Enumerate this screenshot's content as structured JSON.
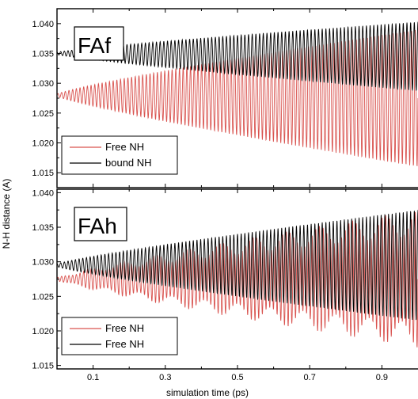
{
  "chart_data": {
    "type": "line",
    "ylabel": "N-H distance (A)",
    "xlabel": "simulation time (ps)",
    "x_ticks": [
      "0.1",
      "0.3",
      "0.5",
      "0.7",
      "0.9"
    ],
    "xlim": [
      0.0,
      1.0
    ],
    "grid": false,
    "panels": [
      {
        "label": "FAf",
        "ylim": [
          1.0125,
          1.0425
        ],
        "y_ticks": [
          "1.015",
          "1.020",
          "1.025",
          "1.030",
          "1.035",
          "1.040"
        ],
        "legend_position": "lower-left",
        "series": [
          {
            "name": "Free NH",
            "color": "#d9534f",
            "center": [
              1.028,
              1.0275
            ],
            "amplitude": [
              0.0002,
              0.0115
            ]
          },
          {
            "name": "bound NH",
            "color": "#000000",
            "center": [
              1.035,
              1.0345
            ],
            "amplitude": [
              0.0002,
              0.0058
            ]
          }
        ]
      },
      {
        "label": "FAh",
        "ylim": [
          1.0145,
          1.0405
        ],
        "y_ticks": [
          "1.015",
          "1.020",
          "1.025",
          "1.030",
          "1.035",
          "1.040"
        ],
        "legend_position": "lower-left",
        "series": [
          {
            "name": "Free NH",
            "color": "#d9534f",
            "center": [
              1.0275,
              1.0275
            ],
            "amplitude": [
              0.0002,
              0.01
            ]
          },
          {
            "name": "Free NH",
            "color": "#000000",
            "center": [
              1.0295,
              1.0295
            ],
            "amplitude": [
              0.0002,
              0.008
            ]
          }
        ]
      }
    ]
  }
}
